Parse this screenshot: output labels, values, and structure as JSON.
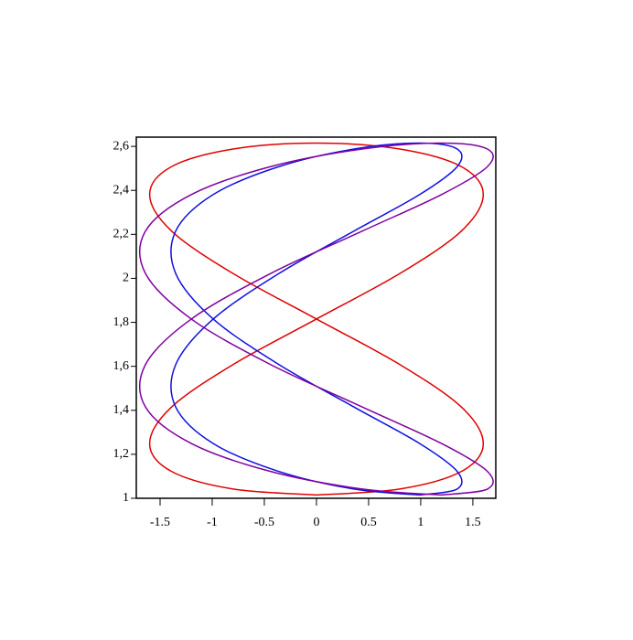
{
  "chart_data": {
    "type": "line",
    "xlim": [
      -1.728,
      1.72
    ],
    "ylim": [
      1,
      2.642
    ],
    "xticks": [
      -1.5,
      -1,
      -0.5,
      0,
      0.5,
      1,
      1.5
    ],
    "yticks": [
      1,
      {
        "value": 1.2,
        "label": "1,2"
      },
      {
        "value": 1.4,
        "label": "1,4"
      },
      {
        "value": 1.6,
        "label": "1,6"
      },
      {
        "value": 1.8,
        "label": "1,8"
      },
      2,
      {
        "value": 2.2,
        "label": "2,2"
      },
      {
        "value": 2.4,
        "label": "2,4"
      },
      {
        "value": 2.6,
        "label": "2,6"
      }
    ],
    "series": [
      {
        "color": "#e00000",
        "x": [
          0,
          0.8,
          1.39,
          1.6,
          1.39,
          0.8,
          0,
          -0.8,
          -1.39,
          -1.6,
          -1.39,
          -0.8,
          0,
          0.8,
          1.39,
          1.6,
          1.39,
          0.8,
          0,
          -0.8,
          -1.39,
          -1.6,
          -1.39,
          -0.8,
          0
        ],
        "values": [
          1.015,
          1.042,
          1.122,
          1.249,
          1.415,
          1.608,
          1.815,
          2.022,
          2.215,
          2.381,
          2.508,
          2.588,
          2.615,
          2.588,
          2.508,
          2.381,
          2.215,
          2.022,
          1.815,
          1.608,
          1.415,
          1.249,
          1.122,
          1.042,
          1.015
        ]
      },
      {
        "color": "#1010e0",
        "x": [
          0.99,
          1.35,
          1.35,
          0.99,
          0.36,
          -0.36,
          -0.99,
          -1.35,
          -1.35,
          -0.99,
          -0.36,
          0.36,
          0.99,
          1.35,
          1.35,
          0.99,
          0.36,
          -0.36,
          -0.99,
          -1.35,
          -1.35,
          -0.99,
          -0.36,
          0.36,
          0.99
        ],
        "values": [
          1.015,
          1.042,
          1.122,
          1.249,
          1.415,
          1.608,
          1.815,
          2.022,
          2.215,
          2.381,
          2.508,
          2.588,
          2.615,
          2.588,
          2.508,
          2.381,
          2.215,
          2.022,
          1.815,
          1.608,
          1.415,
          1.249,
          1.122,
          1.042,
          1.015
        ]
      },
      {
        "color": "#8000a0",
        "x": [
          1.2,
          0.44,
          -0.44,
          -1.2,
          -1.64,
          -1.64,
          -1.2,
          -0.44,
          0.44,
          1.2,
          1.64,
          1.64,
          1.2,
          0.44,
          -0.44,
          -1.2,
          -1.64,
          -1.64,
          -1.2,
          -0.44,
          0.44,
          1.2,
          1.64,
          1.64,
          1.2
        ],
        "values": [
          1.015,
          1.042,
          1.122,
          1.249,
          1.415,
          1.608,
          1.815,
          2.022,
          2.215,
          2.381,
          2.508,
          2.588,
          2.615,
          2.588,
          2.508,
          2.381,
          2.215,
          2.022,
          1.815,
          1.608,
          1.415,
          1.249,
          1.122,
          1.042,
          1.015
        ]
      }
    ]
  }
}
